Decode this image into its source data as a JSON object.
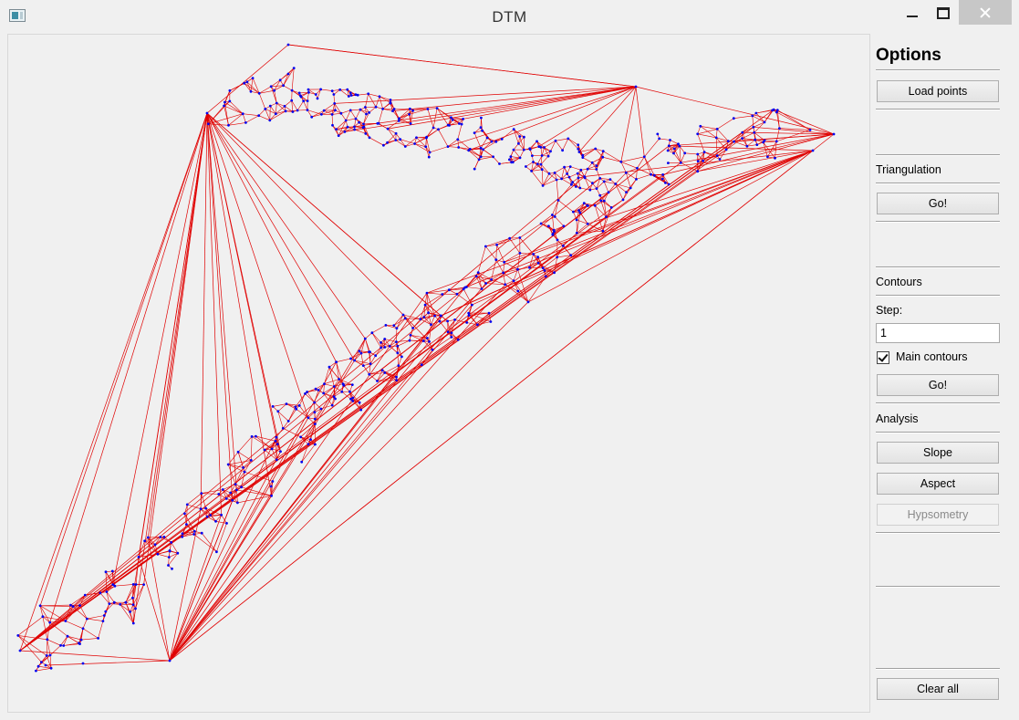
{
  "window": {
    "title": "DTM"
  },
  "panel": {
    "heading": "Options",
    "load_points": "Load points",
    "triangulation": {
      "label": "Triangulation",
      "go": "Go!"
    },
    "contours": {
      "label": "Contours",
      "step_label": "Step:",
      "step_value": "1",
      "main_contours_label": "Main contours",
      "main_contours_checked": true,
      "go": "Go!"
    },
    "analysis": {
      "label": "Analysis",
      "slope": "Slope",
      "aspect": "Aspect",
      "hypsometry": "Hypsometry"
    },
    "clear_all": "Clear all"
  },
  "colors": {
    "edge": "#e00000",
    "point": "#0000ee",
    "background": "#f0f0f0"
  }
}
